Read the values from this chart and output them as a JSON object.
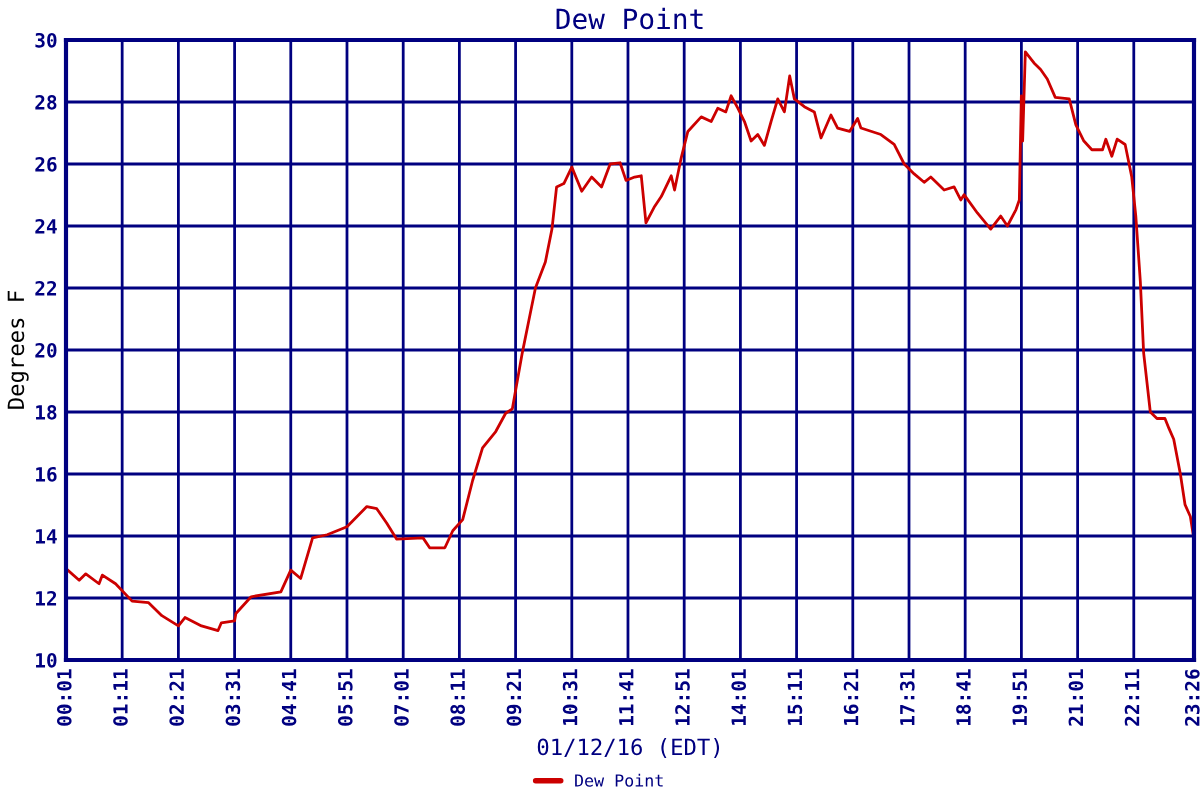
{
  "chart_data": {
    "type": "line",
    "title": "Dew Point",
    "xlabel": "01/12/16 (EDT)",
    "ylabel": "Degrees F",
    "xlim": [
      0.017,
      23.433
    ],
    "ylim": [
      10,
      30
    ],
    "xticks": [
      {
        "value": 0.017,
        "label": "00:01"
      },
      {
        "value": 1.183,
        "label": "01:11"
      },
      {
        "value": 2.35,
        "label": "02:21"
      },
      {
        "value": 3.517,
        "label": "03:31"
      },
      {
        "value": 4.683,
        "label": "04:41"
      },
      {
        "value": 5.85,
        "label": "05:51"
      },
      {
        "value": 7.017,
        "label": "07:01"
      },
      {
        "value": 8.183,
        "label": "08:11"
      },
      {
        "value": 9.35,
        "label": "09:21"
      },
      {
        "value": 10.517,
        "label": "10:31"
      },
      {
        "value": 11.683,
        "label": "11:41"
      },
      {
        "value": 12.85,
        "label": "12:51"
      },
      {
        "value": 14.017,
        "label": "14:01"
      },
      {
        "value": 15.183,
        "label": "15:11"
      },
      {
        "value": 16.35,
        "label": "16:21"
      },
      {
        "value": 17.517,
        "label": "17:31"
      },
      {
        "value": 18.683,
        "label": "18:41"
      },
      {
        "value": 19.85,
        "label": "19:51"
      },
      {
        "value": 21.017,
        "label": "21:01"
      },
      {
        "value": 22.183,
        "label": "22:11"
      },
      {
        "value": 23.433,
        "label": "23:26"
      }
    ],
    "yticks": [
      10,
      12,
      14,
      16,
      18,
      20,
      22,
      24,
      26,
      28,
      30
    ],
    "grid": true,
    "legend": "bottom",
    "marker": "none",
    "line_style": "solid",
    "series": [
      {
        "name": "Dew Point",
        "color": "#cc0000",
        "x": [
          0.017,
          0.291,
          0.428,
          0.703,
          0.772,
          1.046,
          1.389,
          1.732,
          2.007,
          2.35,
          2.487,
          2.83,
          3.173,
          3.242,
          3.516,
          3.544,
          3.86,
          4.477,
          4.683,
          4.889,
          5.136,
          5.438,
          5.85,
          6.262,
          6.468,
          6.673,
          6.879,
          7.428,
          7.566,
          7.882,
          8.046,
          8.252,
          8.458,
          8.664,
          8.938,
          9.144,
          9.282,
          9.488,
          9.625,
          9.762,
          9.968,
          10.105,
          10.201,
          10.352,
          10.517,
          10.723,
          10.929,
          11.134,
          11.313,
          11.519,
          11.642,
          11.821,
          11.959,
          12.056,
          12.236,
          12.374,
          12.581,
          12.65,
          12.788,
          12.926,
          13.203,
          13.41,
          13.548,
          13.714,
          13.825,
          13.963,
          14.101,
          14.239,
          14.377,
          14.515,
          14.653,
          14.792,
          14.93,
          15.04,
          15.137,
          15.344,
          15.551,
          15.69,
          15.897,
          16.035,
          16.284,
          16.45,
          16.519,
          16.933,
          17.209,
          17.417,
          17.624,
          17.831,
          17.969,
          18.246,
          18.453,
          18.591,
          18.66,
          18.936,
          19.213,
          19.42,
          19.559,
          19.738,
          19.807,
          19.849,
          19.876,
          19.932,
          20.111,
          20.249,
          20.387,
          20.553,
          20.843,
          20.981,
          21.147,
          21.313,
          21.534,
          21.603,
          21.727,
          21.838,
          22.004,
          22.141,
          22.225,
          22.319,
          22.388,
          22.526,
          22.664,
          22.83,
          22.913,
          23.012,
          23.15,
          23.247,
          23.357,
          23.433
        ],
        "values": [
          12.95,
          12.57,
          12.78,
          12.46,
          12.74,
          12.46,
          11.9,
          11.85,
          11.43,
          11.1,
          11.37,
          11.1,
          10.95,
          11.2,
          11.26,
          11.5,
          12.04,
          12.2,
          12.9,
          12.63,
          13.94,
          14.04,
          14.3,
          14.95,
          14.88,
          14.42,
          13.9,
          13.94,
          13.62,
          13.62,
          14.17,
          14.53,
          15.79,
          16.84,
          17.37,
          17.96,
          18.1,
          19.9,
          20.95,
          22.0,
          22.84,
          23.9,
          25.26,
          25.37,
          25.9,
          25.12,
          25.58,
          25.26,
          26.0,
          26.04,
          25.47,
          25.58,
          25.62,
          24.1,
          24.63,
          24.95,
          25.62,
          25.16,
          26.2,
          27.05,
          27.52,
          27.37,
          27.8,
          27.68,
          28.2,
          27.8,
          27.37,
          26.74,
          26.95,
          26.6,
          27.37,
          28.1,
          27.68,
          28.84,
          28.1,
          27.85,
          27.68,
          26.84,
          27.58,
          27.16,
          27.05,
          27.47,
          27.16,
          26.95,
          26.63,
          26.0,
          25.68,
          25.41,
          25.58,
          25.16,
          25.26,
          24.84,
          25.01,
          24.42,
          23.9,
          24.32,
          24.0,
          24.53,
          24.84,
          28.2,
          26.74,
          29.62,
          29.26,
          29.05,
          28.74,
          28.15,
          28.1,
          27.26,
          26.74,
          26.46,
          26.46,
          26.8,
          26.25,
          26.8,
          26.63,
          25.58,
          24.32,
          22.21,
          19.9,
          18.0,
          17.79,
          17.79,
          17.47,
          17.12,
          16.0,
          15.01,
          14.63,
          13.89
        ]
      }
    ]
  }
}
